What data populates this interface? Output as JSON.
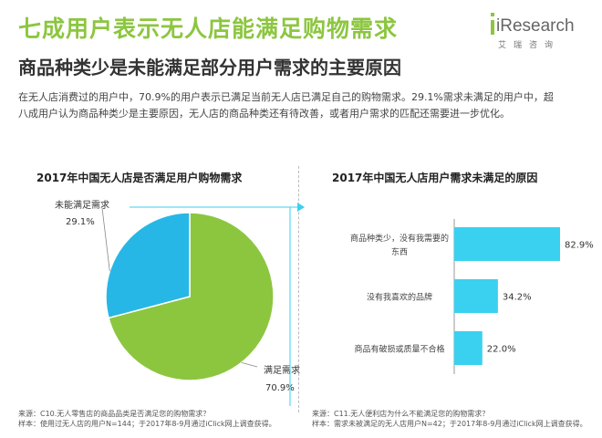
{
  "header": {
    "title": "七成用户表示无人店能满足购物需求",
    "subtitle": "商品种类少是未能满足部分用户需求的主要原因"
  },
  "logo": {
    "name": "iResearch",
    "cn": "艾瑞咨询"
  },
  "intro": {
    "line1": "在无人店消费过的用户中，70.9%的用户表示已满足当前无人店已满足自己的购物需求。29.1%需求未满足的用户中，超",
    "line2": "八成用户认为商品种类少是主要原因，无人店的商品种类还有待改善，或者用户需求的匹配还需要进一步优化。"
  },
  "colors": {
    "accent_green": "#8cc63f",
    "pie_blue": "#27b7e6",
    "bar_cyan": "#3ad1f0"
  },
  "chart_data": [
    {
      "type": "pie",
      "title": "2017年中国无人店是否满足用户购物需求",
      "slices": [
        {
          "label": "满足需求",
          "value": 70.9,
          "display": "70.9%"
        },
        {
          "label": "未能满足需求",
          "value": 29.1,
          "display": "29.1%"
        }
      ]
    },
    {
      "type": "bar",
      "orientation": "horizontal",
      "title": "2017年中国无人店用户需求未满足的原因",
      "categories": [
        "商品种类少，没有我需要的东西",
        "没有我喜欢的品牌",
        "商品有破损或质量不合格"
      ],
      "category_lines": [
        [
          "商品种类少，没有我需要的",
          "东西"
        ],
        [
          "没有我喜欢的品牌"
        ],
        [
          "商品有破损或质量不合格"
        ]
      ],
      "values": [
        82.9,
        34.2,
        22.0
      ],
      "display": [
        "82.9%",
        "34.2%",
        "22.0%"
      ],
      "xlim": [
        0,
        100
      ]
    }
  ],
  "sources": {
    "left": {
      "line1": "来源：C10.无人零售店的商品品类是否满足您的购物需求？",
      "line2": "样本：使用过无人店的用户N=144；于2017年8-9月通过iClick网上调查获得。"
    },
    "right": {
      "line1": "来源：C11.无人便利店为什么不能满足您的购物需求？",
      "line2": "样本：需求未被满足的无人店用户N=42；于2017年8-9月通过iClick网上调查获得。"
    }
  }
}
